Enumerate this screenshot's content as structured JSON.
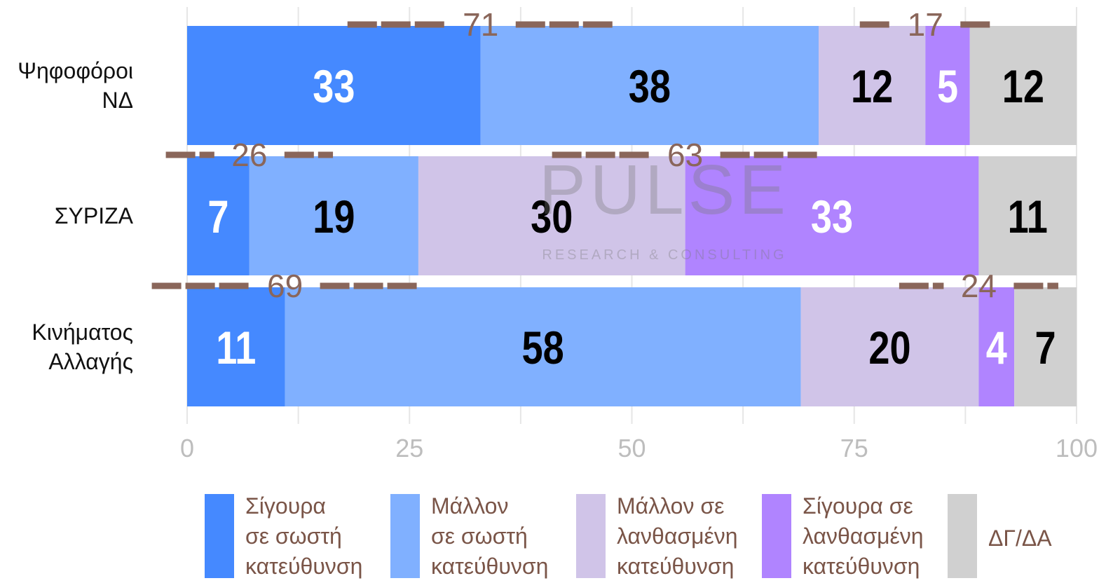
{
  "chart_data": {
    "type": "stacked-bar-horizontal",
    "categories": [
      "Ψηφοφόροι\nΝΔ",
      "ΣΥΡΙΖΑ",
      "Κινήματος\nΑλλαγής"
    ],
    "series": [
      {
        "name": "Σίγουρα\nσε σωστή\nκατεύθυνση",
        "color": "#4589ff",
        "label_color": "#ffffff",
        "values": [
          33,
          7,
          11
        ]
      },
      {
        "name": "Μάλλον\nσε σωστή\nκατεύθυνση",
        "color": "#80b0ff",
        "label_color": "#000000",
        "values": [
          38,
          19,
          58
        ]
      },
      {
        "name": "Μάλλον σε\nλανθασμένη\nκατεύθυνση",
        "color": "#d0c4e8",
        "label_color": "#000000",
        "values": [
          12,
          30,
          20
        ]
      },
      {
        "name": "Σίγουρα σε\nλανθασμένη\nκατεύθυνση",
        "color": "#b084ff",
        "label_color": "#ffffff",
        "values": [
          5,
          33,
          4
        ]
      },
      {
        "name": "ΔΓ/ΔΑ",
        "color": "#d0d0d0",
        "label_color": "#000000",
        "values": [
          12,
          11,
          7
        ]
      }
    ],
    "brackets": [
      {
        "category": 0,
        "series": [
          0,
          1
        ],
        "value": 71
      },
      {
        "category": 0,
        "series": [
          2,
          3
        ],
        "value": 17
      },
      {
        "category": 1,
        "series": [
          0,
          1
        ],
        "value": 26
      },
      {
        "category": 1,
        "series": [
          2,
          3
        ],
        "value": 63
      },
      {
        "category": 2,
        "series": [
          0,
          1
        ],
        "value": 69
      },
      {
        "category": 2,
        "series": [
          2,
          3
        ],
        "value": 24
      }
    ],
    "xlim": [
      0,
      100
    ],
    "xticks": [
      0,
      25,
      50,
      75,
      100
    ],
    "xgrid": [
      0,
      12.5,
      25,
      37.5,
      50,
      62.5,
      75,
      87.5,
      100
    ],
    "watermark": {
      "title": "PULSE",
      "subtitle": "RESEARCH & CONSULTING"
    }
  }
}
